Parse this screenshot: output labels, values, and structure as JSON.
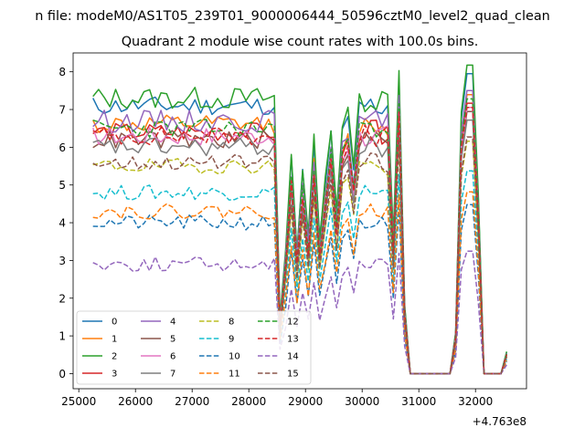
{
  "chart_data": {
    "type": "line",
    "suptitle": "n file: modeM0/AS1T05_239T01_9000006444_50596cztM0_level2_quad_clean",
    "title": "Quadrant 2 module wise count rates with 100.0s bins.",
    "xlabel": "",
    "ylabel": "",
    "x_offset_label": "+4.763e8",
    "xlim": [
      24900,
      32900
    ],
    "ylim": [
      -0.4,
      8.5
    ],
    "xticks": [
      25000,
      26000,
      27000,
      28000,
      29000,
      30000,
      31000,
      32000
    ],
    "xtick_labels": [
      "25000",
      "26000",
      "27000",
      "28000",
      "29000",
      "30000",
      "31000",
      "32000"
    ],
    "yticks": [
      0,
      1,
      2,
      3,
      4,
      5,
      6,
      7,
      8
    ],
    "ytick_labels": [
      "0",
      "1",
      "2",
      "3",
      "4",
      "5",
      "6",
      "7",
      "8"
    ],
    "grid": false,
    "legend": {
      "position": "lower-left",
      "columns": 4
    },
    "x_start": 25250,
    "x_step": 100,
    "n_points": 74,
    "gap_segments": [
      [
        2,
        13
      ],
      [
        16,
        25
      ],
      [
        27,
        31
      ]
    ],
    "spike_indices": [
      1,
      14,
      15,
      26,
      32
    ],
    "series": [
      {
        "name": "0",
        "color": "#1f77b4",
        "dash": "solid",
        "level": 7.1,
        "noise": 0.25
      },
      {
        "name": "1",
        "color": "#ff7f0e",
        "dash": "solid",
        "level": 6.6,
        "noise": 0.25
      },
      {
        "name": "2",
        "color": "#2ca02c",
        "dash": "solid",
        "level": 7.3,
        "noise": 0.3
      },
      {
        "name": "3",
        "color": "#d62728",
        "dash": "solid",
        "level": 6.4,
        "noise": 0.25
      },
      {
        "name": "4",
        "color": "#9467bd",
        "dash": "solid",
        "level": 6.7,
        "noise": 0.3
      },
      {
        "name": "5",
        "color": "#8c564b",
        "dash": "solid",
        "level": 6.2,
        "noise": 0.25
      },
      {
        "name": "6",
        "color": "#e377c2",
        "dash": "solid",
        "level": 6.3,
        "noise": 0.25
      },
      {
        "name": "7",
        "color": "#7f7f7f",
        "dash": "solid",
        "level": 6.0,
        "noise": 0.25
      },
      {
        "name": "8",
        "color": "#bcbd22",
        "dash": "dashed",
        "level": 5.5,
        "noise": 0.2
      },
      {
        "name": "9",
        "color": "#17becf",
        "dash": "dashed",
        "level": 4.8,
        "noise": 0.2
      },
      {
        "name": "10",
        "color": "#1f77b4",
        "dash": "dashed",
        "level": 4.0,
        "noise": 0.2
      },
      {
        "name": "11",
        "color": "#ff7f0e",
        "dash": "dashed",
        "level": 4.3,
        "noise": 0.2
      },
      {
        "name": "12",
        "color": "#2ca02c",
        "dash": "dashed",
        "level": 6.5,
        "noise": 0.25
      },
      {
        "name": "13",
        "color": "#d62728",
        "dash": "dashed",
        "level": 6.3,
        "noise": 0.25
      },
      {
        "name": "14",
        "color": "#9467bd",
        "dash": "dashed",
        "level": 2.9,
        "noise": 0.2
      },
      {
        "name": "15",
        "color": "#8c564b",
        "dash": "dashed",
        "level": 5.6,
        "noise": 0.2
      }
    ]
  }
}
